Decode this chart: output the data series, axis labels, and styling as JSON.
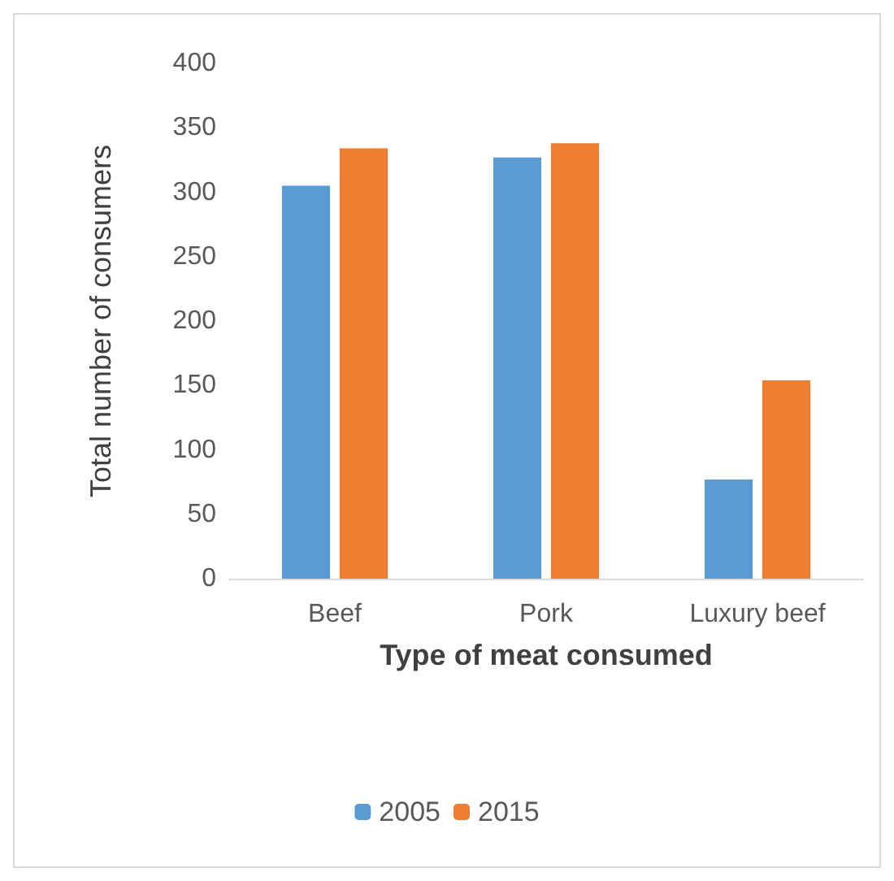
{
  "chart_data": {
    "type": "bar",
    "xlabel": "Type of meat consumed",
    "ylabel": "Total number of consumers",
    "categories": [
      "Beef",
      "Pork",
      "Luxury beef"
    ],
    "series": [
      {
        "name": "2005",
        "color": "#5b9bd5",
        "values": [
          305,
          327,
          77
        ]
      },
      {
        "name": "2015",
        "color": "#ed7d31",
        "values": [
          334,
          338,
          154
        ]
      }
    ],
    "ylim": [
      0,
      400
    ],
    "yticks": [
      0,
      50,
      100,
      150,
      200,
      250,
      300,
      350,
      400
    ],
    "grid": false,
    "legend": "bottom"
  }
}
